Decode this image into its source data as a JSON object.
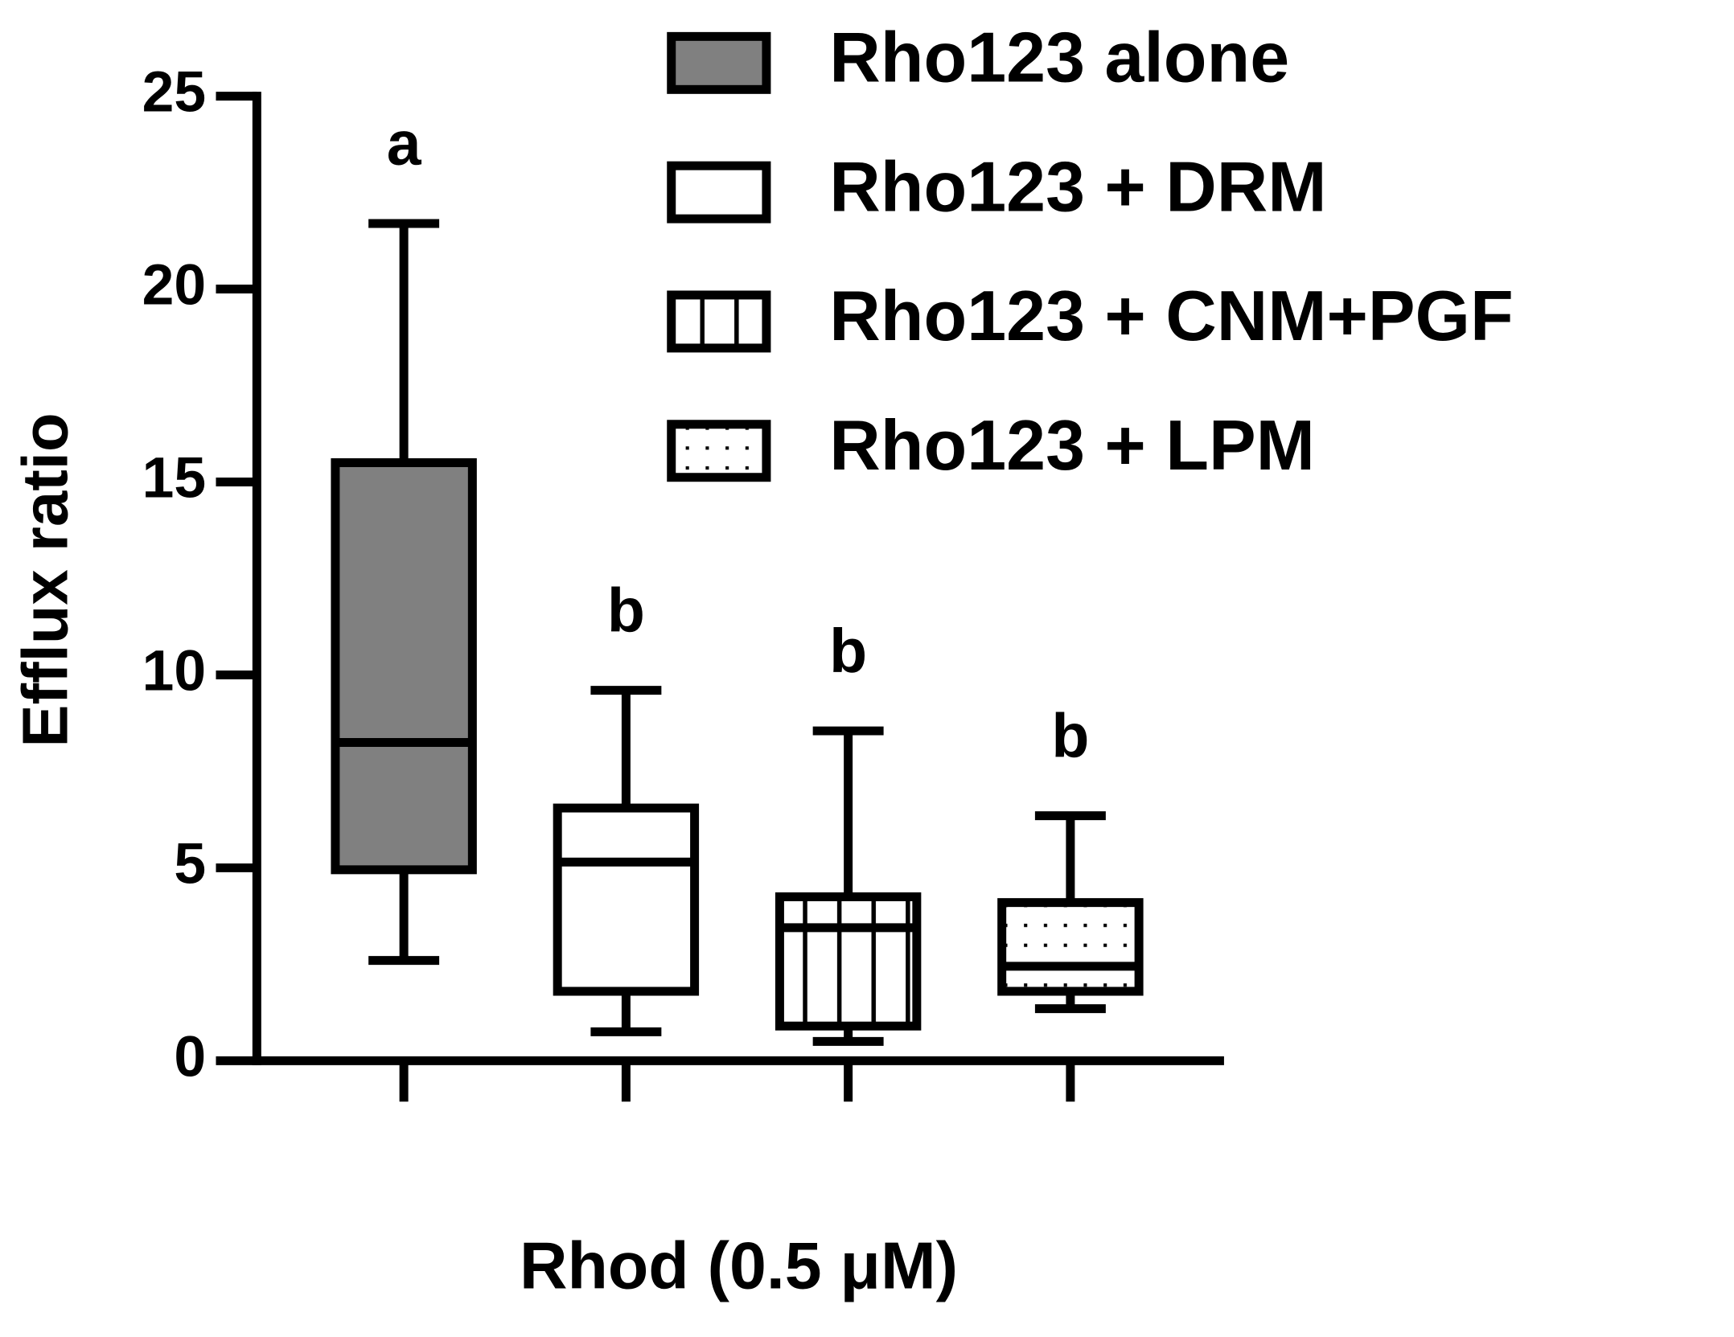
{
  "chart_data": {
    "type": "box",
    "x_label": "Rhod (0.5 μM)",
    "y_label": "Efflux ratio",
    "ylim": [
      0,
      25
    ],
    "yticks": [
      0,
      5,
      10,
      15,
      20,
      25
    ],
    "grid": false,
    "legend": "top-right",
    "series": [
      {
        "name": "Rho123 alone",
        "color": "#808080",
        "pattern": "solid",
        "label": "a",
        "min": 2.6,
        "q1": 4.95,
        "median": 8.25,
        "q3": 15.5,
        "max": 21.7
      },
      {
        "name": "Rho123 + DRM",
        "color": "#ffffff",
        "pattern": "none",
        "label": "b",
        "min": 0.75,
        "q1": 1.8,
        "median": 5.15,
        "q3": 6.55,
        "max": 9.6
      },
      {
        "name": "Rho123 + CNM+PGF",
        "color": "#ffffff",
        "pattern": "vertical",
        "label": "b",
        "min": 0.5,
        "q1": 0.9,
        "median": 3.45,
        "q3": 4.25,
        "max": 8.55
      },
      {
        "name": "Rho123 + LPM",
        "color": "#ffffff",
        "pattern": "dots",
        "label": "b",
        "min": 1.35,
        "q1": 1.8,
        "median": 2.45,
        "q3": 4.1,
        "max": 6.35
      }
    ]
  }
}
